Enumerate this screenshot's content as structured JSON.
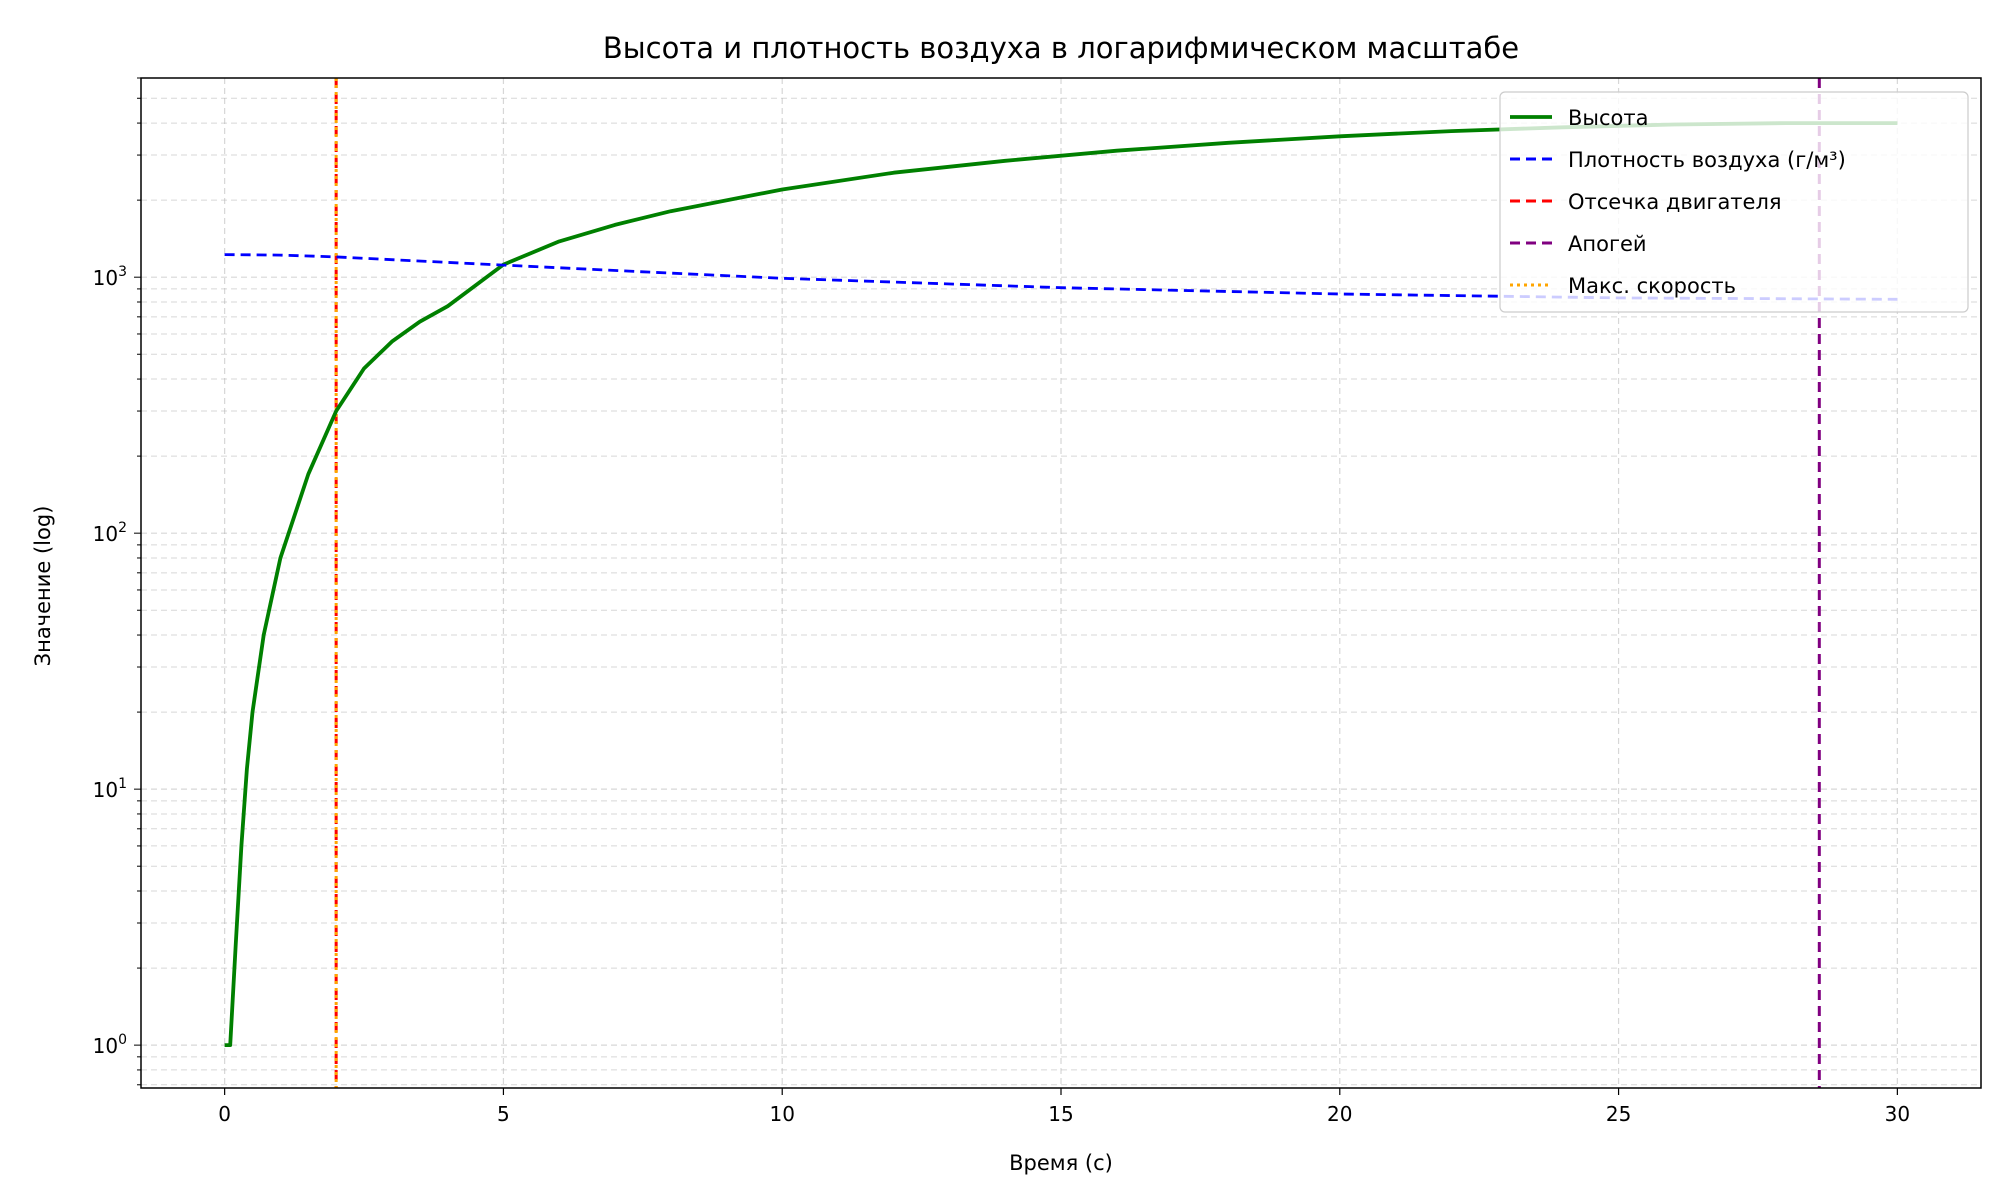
{
  "chart_data": {
    "type": "line",
    "title": "Высота и плотность воздуха в логарифмическом масштабе",
    "xlabel": "Время (с)",
    "ylabel": "Значение (log)",
    "xlim": [
      -1.5,
      31.5
    ],
    "ylim": [
      0.68,
      6000
    ],
    "yscale": "log",
    "grid": true,
    "legend_position": "top-right",
    "x_ticks": [
      0,
      5,
      10,
      15,
      20,
      25,
      30
    ],
    "y_ticks": [
      1,
      10,
      100,
      1000
    ],
    "y_tick_labels": [
      {
        "base": "10",
        "exp": "0"
      },
      {
        "base": "10",
        "exp": "1"
      },
      {
        "base": "10",
        "exp": "2"
      },
      {
        "base": "10",
        "exp": "3"
      }
    ],
    "series": [
      {
        "name": "Высота",
        "color": "#008000",
        "style": "solid",
        "x": [
          0,
          0.1,
          0.2,
          0.3,
          0.4,
          0.5,
          0.7,
          1.0,
          1.5,
          2.0,
          2.5,
          3.0,
          3.5,
          4.0,
          5.0,
          6.0,
          7.0,
          8.0,
          10.0,
          12.0,
          14.0,
          16.0,
          18.0,
          20.0,
          22.0,
          24.0,
          26.0,
          28.0,
          30.0
        ],
        "y": [
          1,
          1,
          2.5,
          6,
          12,
          20,
          40,
          80,
          170,
          300,
          440,
          560,
          670,
          770,
          1120,
          1380,
          1600,
          1810,
          2200,
          2560,
          2850,
          3120,
          3350,
          3550,
          3720,
          3850,
          3950,
          4000,
          4000
        ]
      },
      {
        "name": "Плотность воздуха (г/м³)",
        "color": "#0000ff",
        "style": "dashed",
        "x": [
          0,
          1,
          2,
          3,
          5,
          7.5,
          10,
          15,
          20,
          25,
          30
        ],
        "y": [
          1225,
          1220,
          1200,
          1170,
          1115,
          1050,
          990,
          910,
          860,
          830,
          820
        ]
      }
    ],
    "vlines": [
      {
        "name": "Отсечка двигателя",
        "x": 2.0,
        "color": "#ff0000",
        "style": "dashed"
      },
      {
        "name": "Апогей",
        "x": 28.6,
        "color": "#800080",
        "style": "dashed"
      },
      {
        "name": "Макс. скорость",
        "x": 2.0,
        "color": "#ffa500",
        "style": "dotted"
      }
    ],
    "legend": [
      {
        "label": "Высота",
        "color": "#008000",
        "style": "solid"
      },
      {
        "label": "Плотность воздуха (г/м³)",
        "color": "#0000ff",
        "style": "dashed"
      },
      {
        "label": "Отсечка двигателя",
        "color": "#ff0000",
        "style": "dashed"
      },
      {
        "label": "Апогей",
        "color": "#800080",
        "style": "dashed"
      },
      {
        "label": "Макс. скорость",
        "color": "#ffa500",
        "style": "dotted"
      }
    ]
  }
}
